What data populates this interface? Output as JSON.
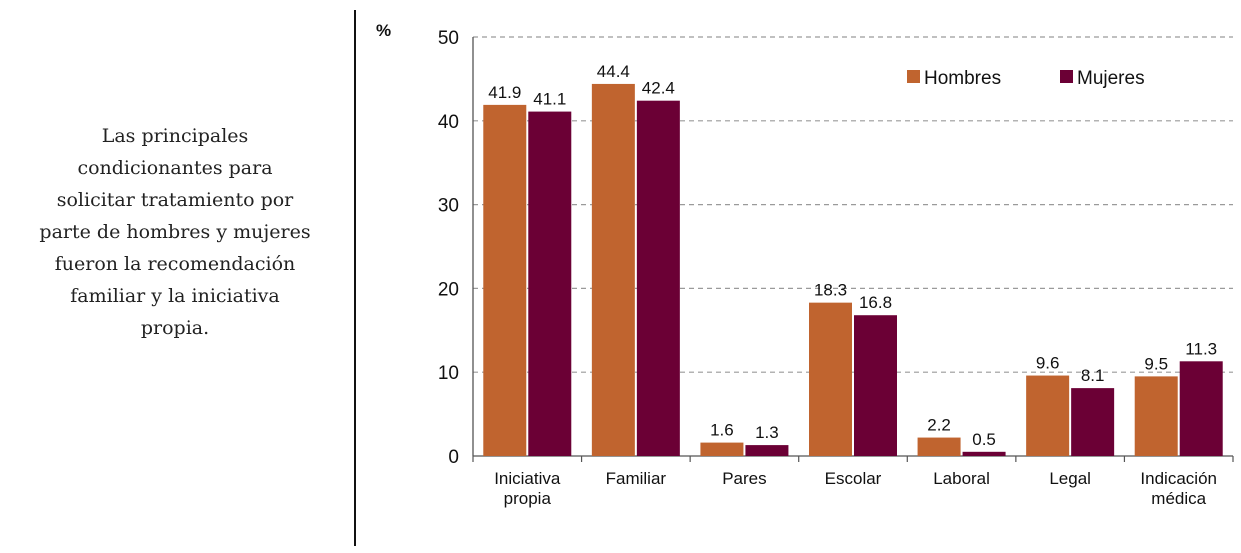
{
  "description_text": "Las principales condicionantes para solicitar tratamiento por parte de hombres y mujeres fueron la recomendación familiar y la iniciativa propia.",
  "description_lines": [
    "Las principales",
    "condicionantes para",
    "solicitar tratamiento por",
    "parte de hombres y mujeres",
    "fueron la recomendación",
    "familiar y la iniciativa",
    "propia."
  ],
  "colors": {
    "hombres": "#C0642F",
    "mujeres": "#6B0035",
    "grid": "#9a9a9a",
    "axis": "#555555"
  },
  "chart_data": {
    "type": "bar",
    "ylabel": "%",
    "ylim": [
      0,
      50
    ],
    "yticks": [
      0,
      10,
      20,
      30,
      40,
      50
    ],
    "grid": true,
    "legend_position": "top-right",
    "categories": [
      [
        "Iniciativa",
        "propia"
      ],
      [
        "Familiar"
      ],
      [
        "Pares"
      ],
      [
        "Escolar"
      ],
      [
        "Laboral"
      ],
      [
        "Legal"
      ],
      [
        "Indicación",
        "médica"
      ]
    ],
    "series": [
      {
        "name": "Hombres",
        "values": [
          41.9,
          44.4,
          1.6,
          18.3,
          2.2,
          9.6,
          9.5
        ]
      },
      {
        "name": "Mujeres",
        "values": [
          41.1,
          42.4,
          1.3,
          16.8,
          0.5,
          8.1,
          11.3
        ]
      }
    ]
  }
}
